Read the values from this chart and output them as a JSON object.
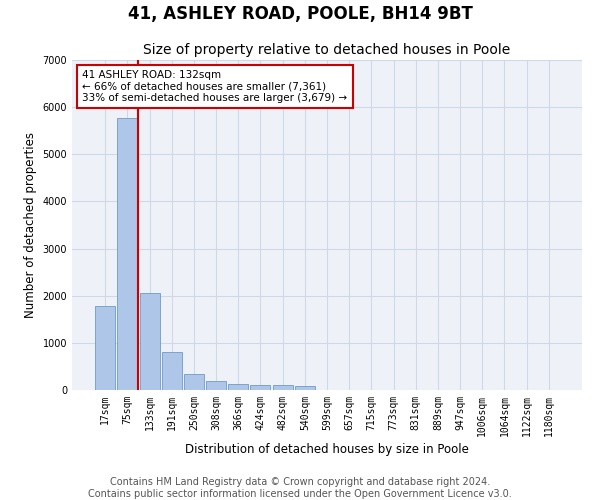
{
  "title": "41, ASHLEY ROAD, POOLE, BH14 9BT",
  "subtitle": "Size of property relative to detached houses in Poole",
  "xlabel": "Distribution of detached houses by size in Poole",
  "ylabel": "Number of detached properties",
  "bar_labels": [
    "17sqm",
    "75sqm",
    "133sqm",
    "191sqm",
    "250sqm",
    "308sqm",
    "366sqm",
    "424sqm",
    "482sqm",
    "540sqm",
    "599sqm",
    "657sqm",
    "715sqm",
    "773sqm",
    "831sqm",
    "889sqm",
    "947sqm",
    "1006sqm",
    "1064sqm",
    "1122sqm",
    "1180sqm"
  ],
  "bar_values": [
    1780,
    5780,
    2060,
    800,
    340,
    200,
    120,
    110,
    100,
    90,
    0,
    0,
    0,
    0,
    0,
    0,
    0,
    0,
    0,
    0,
    0
  ],
  "bar_color": "#aec6e8",
  "bar_edge_color": "#5a8fc0",
  "grid_color": "#d0d8e8",
  "background_color": "#eef2f8",
  "annotation_text_line1": "41 ASHLEY ROAD: 132sqm",
  "annotation_text_line2": "← 66% of detached houses are smaller (7,361)",
  "annotation_text_line3": "33% of semi-detached houses are larger (3,679) →",
  "annotation_box_color": "#ffffff",
  "annotation_box_edge_color": "#cc0000",
  "vline_color": "#cc0000",
  "vline_x_index": 2,
  "ylim": [
    0,
    7000
  ],
  "yticks": [
    0,
    1000,
    2000,
    3000,
    4000,
    5000,
    6000,
    7000
  ],
  "footer_line1": "Contains HM Land Registry data © Crown copyright and database right 2024.",
  "footer_line2": "Contains public sector information licensed under the Open Government Licence v3.0.",
  "title_fontsize": 12,
  "subtitle_fontsize": 10,
  "axis_label_fontsize": 8.5,
  "tick_fontsize": 7,
  "footer_fontsize": 7,
  "annotation_fontsize": 7.5
}
